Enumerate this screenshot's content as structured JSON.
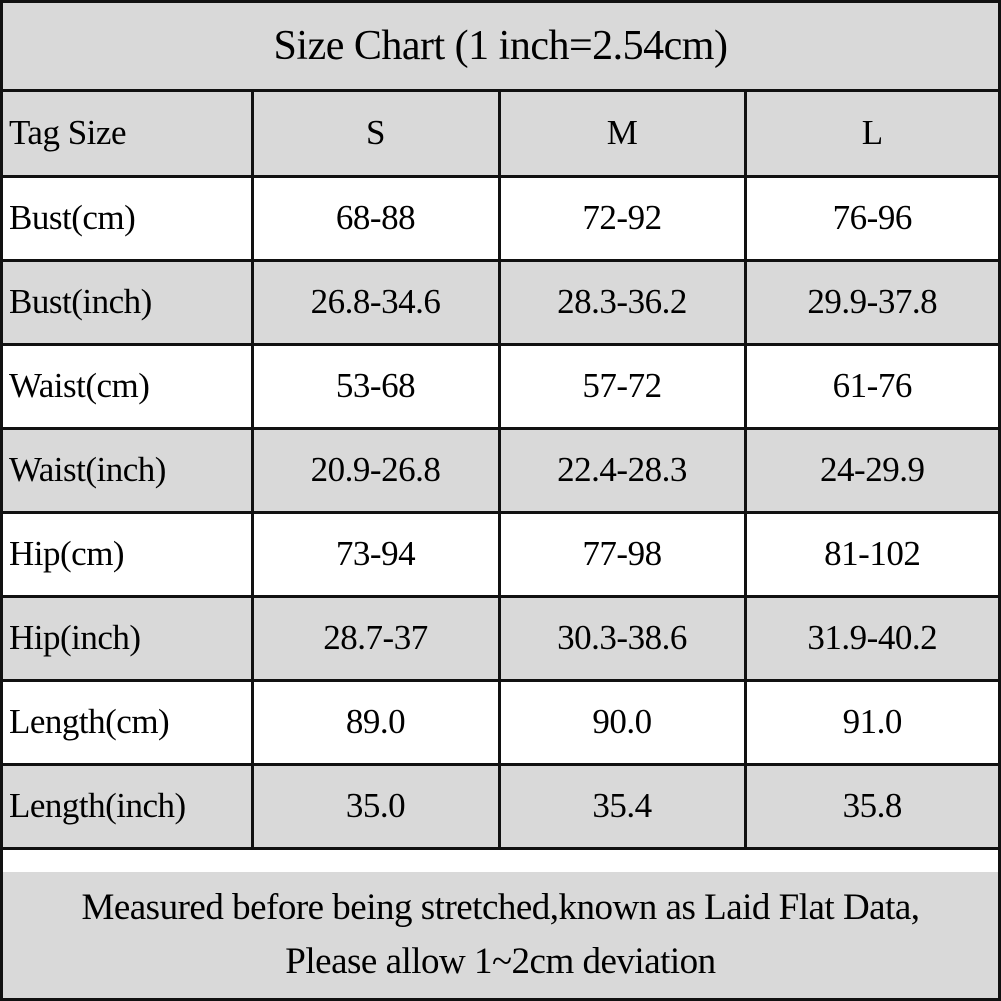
{
  "title": "Size Chart (1 inch=2.54cm)",
  "header": {
    "label": "Tag Size",
    "sizes": [
      "S",
      "M",
      "L"
    ]
  },
  "rows": [
    {
      "label": "Bust(cm)",
      "values": [
        "68-88",
        "72-92",
        "76-96"
      ]
    },
    {
      "label": "Bust(inch)",
      "values": [
        "26.8-34.6",
        "28.3-36.2",
        "29.9-37.8"
      ]
    },
    {
      "label": "Waist(cm)",
      "values": [
        "53-68",
        "57-72",
        "61-76"
      ]
    },
    {
      "label": "Waist(inch)",
      "values": [
        "20.9-26.8",
        "22.4-28.3",
        "24-29.9"
      ]
    },
    {
      "label": "Hip(cm)",
      "values": [
        "73-94",
        "77-98",
        "81-102"
      ]
    },
    {
      "label": "Hip(inch)",
      "values": [
        "28.7-37",
        "30.3-38.6",
        "31.9-40.2"
      ]
    },
    {
      "label": "Length(cm)",
      "values": [
        "89.0",
        "90.0",
        "91.0"
      ]
    },
    {
      "label": "Length(inch)",
      "values": [
        "35.0",
        "35.4",
        "35.8"
      ]
    }
  ],
  "footer": {
    "line1": "Measured before being stretched,known as Laid Flat Data,",
    "line2": "Please allow 1~2cm deviation"
  },
  "colors": {
    "shade": "#d9d9d9",
    "plain": "#ffffff",
    "border": "#111111"
  }
}
